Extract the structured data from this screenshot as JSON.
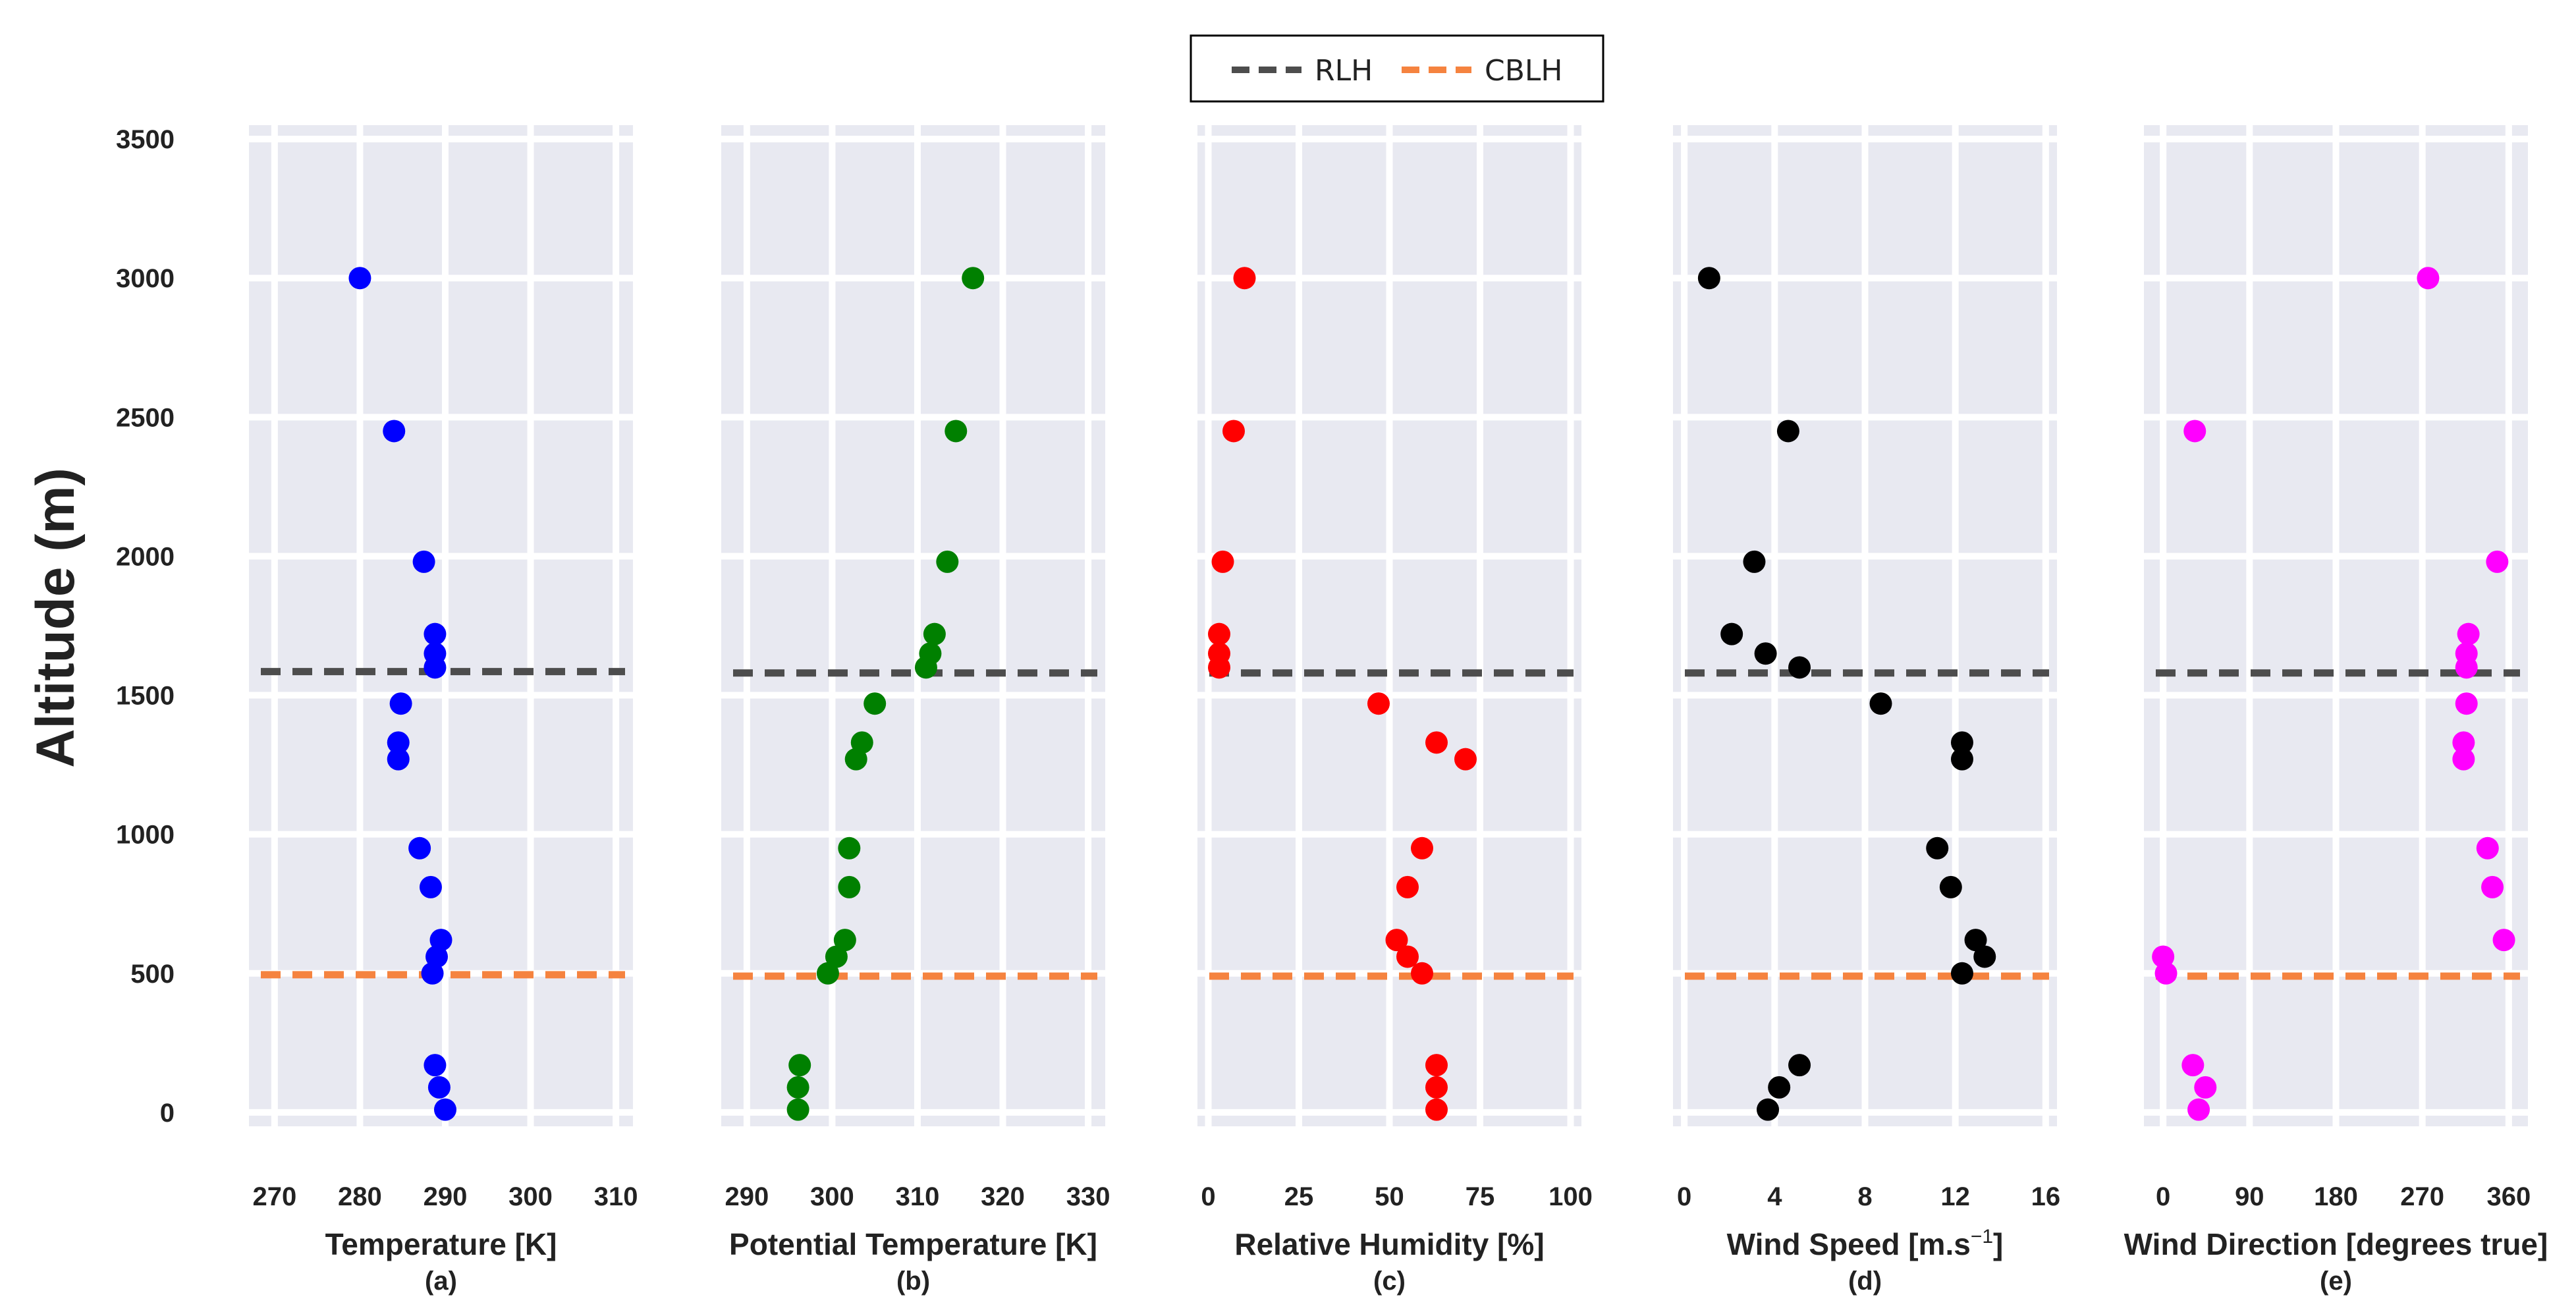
{
  "figure": {
    "ylabel": "Altitude (m)",
    "yticks": [
      0,
      500,
      1000,
      1500,
      2000,
      2500,
      3000,
      3500
    ],
    "ylim": [
      -50,
      3550
    ],
    "altitudes": [
      10,
      90,
      170,
      500,
      560,
      620,
      810,
      950,
      1270,
      1330,
      1470,
      1600,
      1650,
      1720,
      1980,
      2450,
      3000
    ],
    "legend": [
      {
        "label": "RLH",
        "color": "#4d4d4d"
      },
      {
        "label": "CBLH",
        "color": "#f5833f"
      }
    ],
    "colors": {
      "background": "#e8e9f1",
      "grid": "#ffffff",
      "rlh": "#4d4d4d",
      "cblh": "#f5833f"
    }
  },
  "chart_data": [
    {
      "type": "scatter",
      "xlabel": "Temperature [K]",
      "sublabel": "(a)",
      "xlim": [
        267,
        312
      ],
      "xticks": [
        270,
        280,
        290,
        300,
        310
      ],
      "xtick_labels": [
        "270",
        "280",
        "290",
        "300",
        "310"
      ],
      "color": "#0000ff",
      "values": [
        290,
        289.3,
        288.8,
        288.5,
        289,
        289.5,
        288.3,
        287,
        284.5,
        284.5,
        284.8,
        288.8,
        288.8,
        288.8,
        287.5,
        284,
        280
      ],
      "rlh": 1585,
      "cblh": 495
    },
    {
      "type": "scatter",
      "xlabel": "Potential Temperature [K]",
      "sublabel": "(b)",
      "xlim": [
        287,
        332
      ],
      "xticks": [
        290,
        300,
        310,
        320,
        330
      ],
      "xtick_labels": [
        "290",
        "300",
        "310",
        "320",
        "330"
      ],
      "color": "#008000",
      "values": [
        296,
        296,
        296.2,
        299.5,
        300.5,
        301.5,
        302,
        302,
        302.8,
        303.5,
        305,
        311,
        311.5,
        312,
        313.5,
        314.5,
        316.5
      ],
      "rlh": 1580,
      "cblh": 490
    },
    {
      "type": "scatter",
      "xlabel": "Relative Humidity [%]",
      "sublabel": "(c)",
      "xlim": [
        -3,
        103
      ],
      "xticks": [
        0,
        25,
        50,
        75,
        100
      ],
      "xtick_labels": [
        "0",
        "25",
        "50",
        "75",
        "100"
      ],
      "color": "#ff0000",
      "values": [
        63,
        63,
        63,
        59,
        55,
        52,
        55,
        59,
        71,
        63,
        47,
        3,
        3,
        3,
        4,
        7,
        10
      ],
      "rlh": 1580,
      "cblh": 490
    },
    {
      "type": "scatter",
      "xlabel": "Wind Speed [m.s",
      "xlabel_sup": "−1",
      "xlabel_tail": "]",
      "sublabel": "(d)",
      "xlim": [
        -0.5,
        16.5
      ],
      "xticks": [
        0,
        4,
        8,
        12,
        16
      ],
      "xtick_labels": [
        "0",
        "4",
        "8",
        "12",
        "16"
      ],
      "color": "#000000",
      "values": [
        3.7,
        4.2,
        5.1,
        12.3,
        13.3,
        12.9,
        11.8,
        11.2,
        12.3,
        12.3,
        8.7,
        5.1,
        3.6,
        2.1,
        3.1,
        4.6,
        1.1
      ],
      "rlh": 1580,
      "cblh": 490
    },
    {
      "type": "scatter",
      "xlabel": "Wind Direction [degrees true]",
      "sublabel": "(e)",
      "xlim": [
        -20,
        380
      ],
      "xticks": [
        0,
        90,
        180,
        270,
        360
      ],
      "xtick_labels": [
        "0",
        "90",
        "180",
        "270",
        "360"
      ],
      "color": "#ff00ff",
      "values": [
        37,
        44,
        31,
        3,
        0,
        355,
        343,
        338,
        313,
        313,
        316,
        316,
        316,
        318,
        348,
        33,
        276
      ],
      "rlh": 1580,
      "cblh": 490
    }
  ]
}
